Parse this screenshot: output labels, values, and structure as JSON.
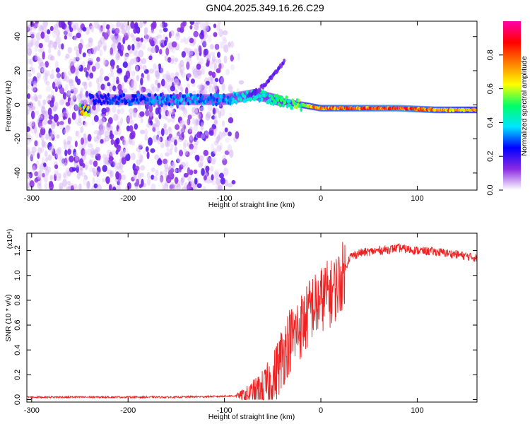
{
  "title": "GN04.2025.349.16.26.C29",
  "chart_data": [
    {
      "type": "heatmap",
      "xlabel": "Height of straight line (km)",
      "ylabel": "Frequency (Hz)",
      "xlim": [
        -305,
        162
      ],
      "ylim": [
        -50,
        49
      ],
      "xticks": [
        -300,
        -200,
        -100,
        0,
        100
      ],
      "yticks": [
        -40,
        -20,
        0,
        20,
        40
      ],
      "colorbar": {
        "label": "Normalized spectral amplitude",
        "range": [
          0,
          1
        ],
        "ticks": [
          "0.0",
          "0.2",
          "0.4",
          "0.6",
          "0.8"
        ],
        "tick_values": [
          0.0,
          0.2,
          0.4,
          0.6,
          0.8
        ],
        "colors": [
          "#ffffff",
          "#8a2be2",
          "#0000ff",
          "#00e5ff",
          "#00ff66",
          "#ffff00",
          "#ff7f00",
          "#ff0000",
          "#ff00aa"
        ]
      },
      "signal_track": [
        {
          "x": -240,
          "freq": 3,
          "amp": 0.25
        },
        {
          "x": -150,
          "freq": 3,
          "amp": 0.35
        },
        {
          "x": -100,
          "freq": 3,
          "amp": 0.35
        },
        {
          "x": -70,
          "freq": 6,
          "amp": 0.45
        },
        {
          "x": -60,
          "freq": 5,
          "amp": 0.45
        },
        {
          "x": -40,
          "freq": 2,
          "amp": 0.5
        },
        {
          "x": -20,
          "freq": 0,
          "amp": 0.55
        },
        {
          "x": -10,
          "freq": -1,
          "amp": 0.75
        },
        {
          "x": 0,
          "freq": -2,
          "amp": 0.8
        },
        {
          "x": 40,
          "freq": -2,
          "amp": 0.85
        },
        {
          "x": 80,
          "freq": -2,
          "amp": 0.9
        },
        {
          "x": 120,
          "freq": -3,
          "amp": 0.8
        },
        {
          "x": 160,
          "freq": -3,
          "amp": 0.7
        }
      ]
    },
    {
      "type": "line",
      "xlabel": "Height of straight line (km)",
      "ylabel": "SNR (10 * v/v)",
      "y_multiplier": "(x10⁴)",
      "xlim": [
        -305,
        162
      ],
      "ylim": [
        -0.02,
        1.34
      ],
      "xticks": [
        -300,
        -200,
        -100,
        0,
        100
      ],
      "yticks": [
        0.0,
        0.2,
        0.4,
        0.6,
        0.8,
        1.0,
        1.2
      ],
      "series": [
        {
          "color": "#ee2222",
          "x": [
            -305,
            -250,
            -200,
            -150,
            -110,
            -90,
            -75,
            -60,
            -50,
            -45,
            -40,
            -35,
            -30,
            -25,
            -20,
            -15,
            -10,
            -5,
            0,
            5,
            10,
            15,
            20,
            25,
            30,
            40,
            60,
            80,
            100,
            120,
            140,
            162
          ],
          "y": [
            0.02,
            0.02,
            0.02,
            0.02,
            0.025,
            0.03,
            0.04,
            0.08,
            0.15,
            0.25,
            0.35,
            0.45,
            0.5,
            0.55,
            0.6,
            0.65,
            0.75,
            0.75,
            0.8,
            0.85,
            0.85,
            0.9,
            0.95,
            1.05,
            1.15,
            1.18,
            1.2,
            1.22,
            1.2,
            1.19,
            1.17,
            1.14
          ]
        }
      ]
    }
  ]
}
